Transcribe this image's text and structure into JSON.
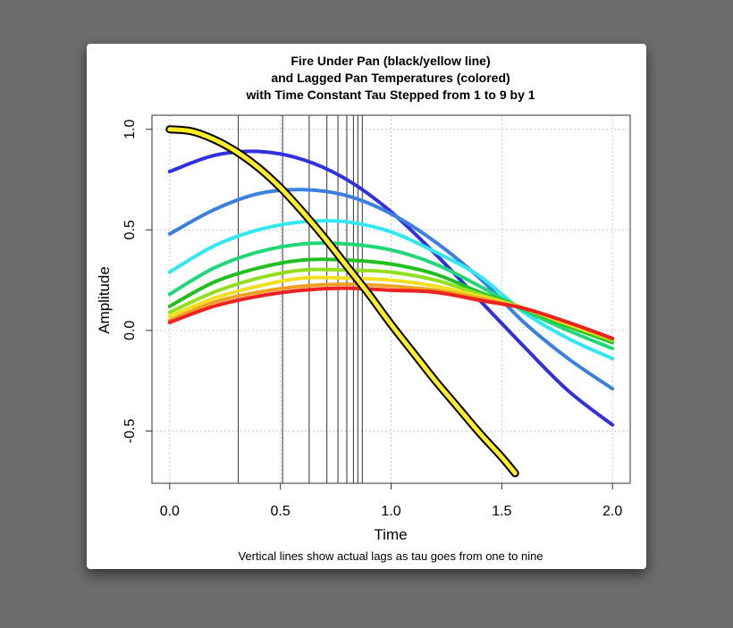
{
  "chart_data": {
    "type": "line",
    "title_lines": [
      "Fire Under Pan (black/yellow line)",
      "and Lagged Pan Temperatures (colored)",
      "with Time Constant Tau Stepped from 1 to 9 by 1"
    ],
    "xlabel": "Time",
    "ylabel": "Amplitude",
    "caption": "Vertical lines show actual lags as tau goes from one to nine",
    "xlim": [
      -0.08,
      2.08
    ],
    "ylim": [
      -0.76,
      1.07
    ],
    "x_ticks": [
      0.0,
      0.5,
      1.0,
      1.5,
      2.0
    ],
    "x_tick_labels": [
      "0.0",
      "0.5",
      "1.0",
      "1.5",
      "2.0"
    ],
    "y_ticks": [
      -0.5,
      0.0,
      0.5,
      1.0
    ],
    "y_tick_labels": [
      "-0.5",
      "0.0",
      "0.5",
      "1.0"
    ],
    "grid": true,
    "fire_series": {
      "x": [
        0.0,
        0.1,
        0.2,
        0.3,
        0.4,
        0.5,
        0.6,
        0.7,
        0.8,
        0.9,
        1.0,
        1.1,
        1.2,
        1.3,
        1.4,
        1.5,
        1.56
      ],
      "y": [
        1.0,
        0.99,
        0.95,
        0.89,
        0.81,
        0.71,
        0.59,
        0.46,
        0.32,
        0.18,
        0.03,
        -0.11,
        -0.25,
        -0.38,
        -0.51,
        -0.63,
        -0.71
      ],
      "stroke": "#000000",
      "fill": "#ffee22"
    },
    "lag_lines_x": [
      0.31,
      0.51,
      0.63,
      0.71,
      0.76,
      0.8,
      0.83,
      0.85,
      0.87
    ],
    "series": [
      {
        "color": "#3030e0",
        "x": [
          0.0,
          0.2,
          0.4,
          0.6,
          0.8,
          1.0,
          1.2,
          1.4,
          1.6,
          1.8,
          2.0
        ],
        "y": [
          0.79,
          0.87,
          0.89,
          0.85,
          0.75,
          0.59,
          0.38,
          0.15,
          -0.08,
          -0.3,
          -0.47
        ]
      },
      {
        "color": "#3a80e0",
        "x": [
          0.0,
          0.2,
          0.4,
          0.6,
          0.8,
          1.0,
          1.2,
          1.4,
          1.6,
          1.8,
          2.0
        ],
        "y": [
          0.48,
          0.6,
          0.68,
          0.7,
          0.67,
          0.58,
          0.44,
          0.26,
          0.04,
          -0.14,
          -0.29
        ]
      },
      {
        "color": "#30e8f0",
        "x": [
          0.0,
          0.2,
          0.4,
          0.6,
          0.8,
          1.0,
          1.2,
          1.4,
          1.6,
          1.8,
          2.0
        ],
        "y": [
          0.29,
          0.42,
          0.5,
          0.54,
          0.54,
          0.49,
          0.39,
          0.27,
          0.09,
          -0.04,
          -0.14
        ]
      },
      {
        "color": "#20d878",
        "x": [
          0.0,
          0.2,
          0.4,
          0.6,
          0.8,
          1.0,
          1.2,
          1.4,
          1.6,
          1.8,
          2.0
        ],
        "y": [
          0.18,
          0.31,
          0.39,
          0.43,
          0.43,
          0.4,
          0.33,
          0.22,
          0.1,
          0.0,
          -0.09
        ]
      },
      {
        "color": "#20c020",
        "x": [
          0.0,
          0.2,
          0.4,
          0.6,
          0.8,
          1.0,
          1.2,
          1.4,
          1.6,
          1.8,
          2.0
        ],
        "y": [
          0.12,
          0.24,
          0.31,
          0.35,
          0.35,
          0.33,
          0.28,
          0.19,
          0.11,
          0.02,
          -0.06
        ]
      },
      {
        "color": "#90e020",
        "x": [
          0.0,
          0.2,
          0.4,
          0.6,
          0.8,
          1.0,
          1.2,
          1.4,
          1.6,
          1.8,
          2.0
        ],
        "y": [
          0.09,
          0.19,
          0.26,
          0.3,
          0.3,
          0.29,
          0.25,
          0.18,
          0.11,
          0.03,
          -0.05
        ]
      },
      {
        "color": "#f0e020",
        "x": [
          0.0,
          0.2,
          0.4,
          0.6,
          0.8,
          1.0,
          1.2,
          1.4,
          1.6,
          1.8,
          2.0
        ],
        "y": [
          0.07,
          0.16,
          0.22,
          0.26,
          0.26,
          0.25,
          0.22,
          0.17,
          0.11,
          0.03,
          -0.04
        ]
      },
      {
        "color": "#f0a020",
        "x": [
          0.0,
          0.2,
          0.4,
          0.6,
          0.8,
          1.0,
          1.2,
          1.4,
          1.6,
          1.8,
          2.0
        ],
        "y": [
          0.05,
          0.14,
          0.19,
          0.22,
          0.23,
          0.22,
          0.2,
          0.16,
          0.11,
          0.04,
          -0.04
        ]
      },
      {
        "color": "#ee2020",
        "x": [
          0.0,
          0.2,
          0.4,
          0.6,
          0.8,
          1.0,
          1.2,
          1.4,
          1.6,
          1.8,
          2.0
        ],
        "y": [
          0.04,
          0.12,
          0.17,
          0.2,
          0.21,
          0.2,
          0.19,
          0.15,
          0.11,
          0.04,
          -0.04
        ]
      }
    ]
  }
}
